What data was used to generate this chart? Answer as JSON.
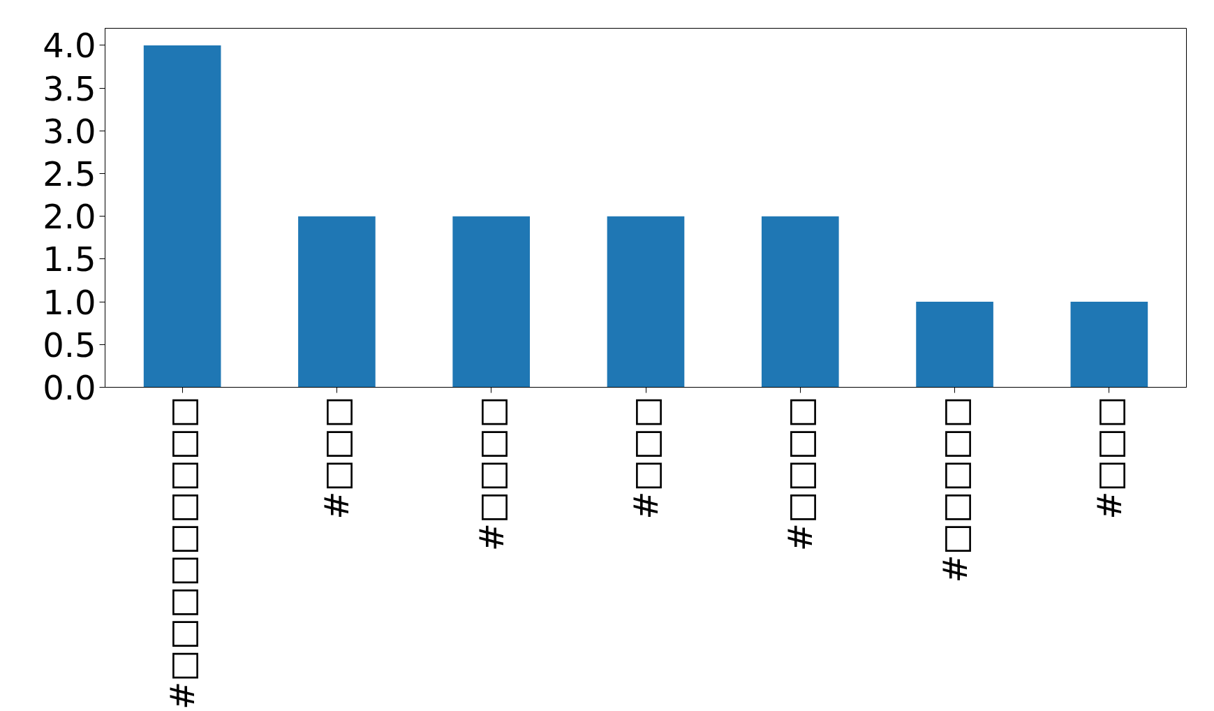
{
  "chart_data": {
    "type": "bar",
    "categories": [
      "#□□□□□□□□□",
      "#□□□",
      "#□□□□",
      "#□□□",
      "#□□□□",
      "#□□□□□",
      "#□□□"
    ],
    "values": [
      4,
      2,
      2,
      2,
      2,
      1,
      1
    ],
    "color": "#1f77b4",
    "ylim": [
      0,
      4.2
    ],
    "yticks": [
      {
        "value": 0,
        "label": "0.0"
      },
      0.5,
      {
        "value": 1,
        "label": "1.0"
      },
      1.5,
      {
        "value": 2,
        "label": "2.0"
      },
      2.5,
      {
        "value": 3,
        "label": "3.0"
      },
      3.5,
      {
        "value": 4,
        "label": "4.0"
      }
    ],
    "grid": false
  }
}
